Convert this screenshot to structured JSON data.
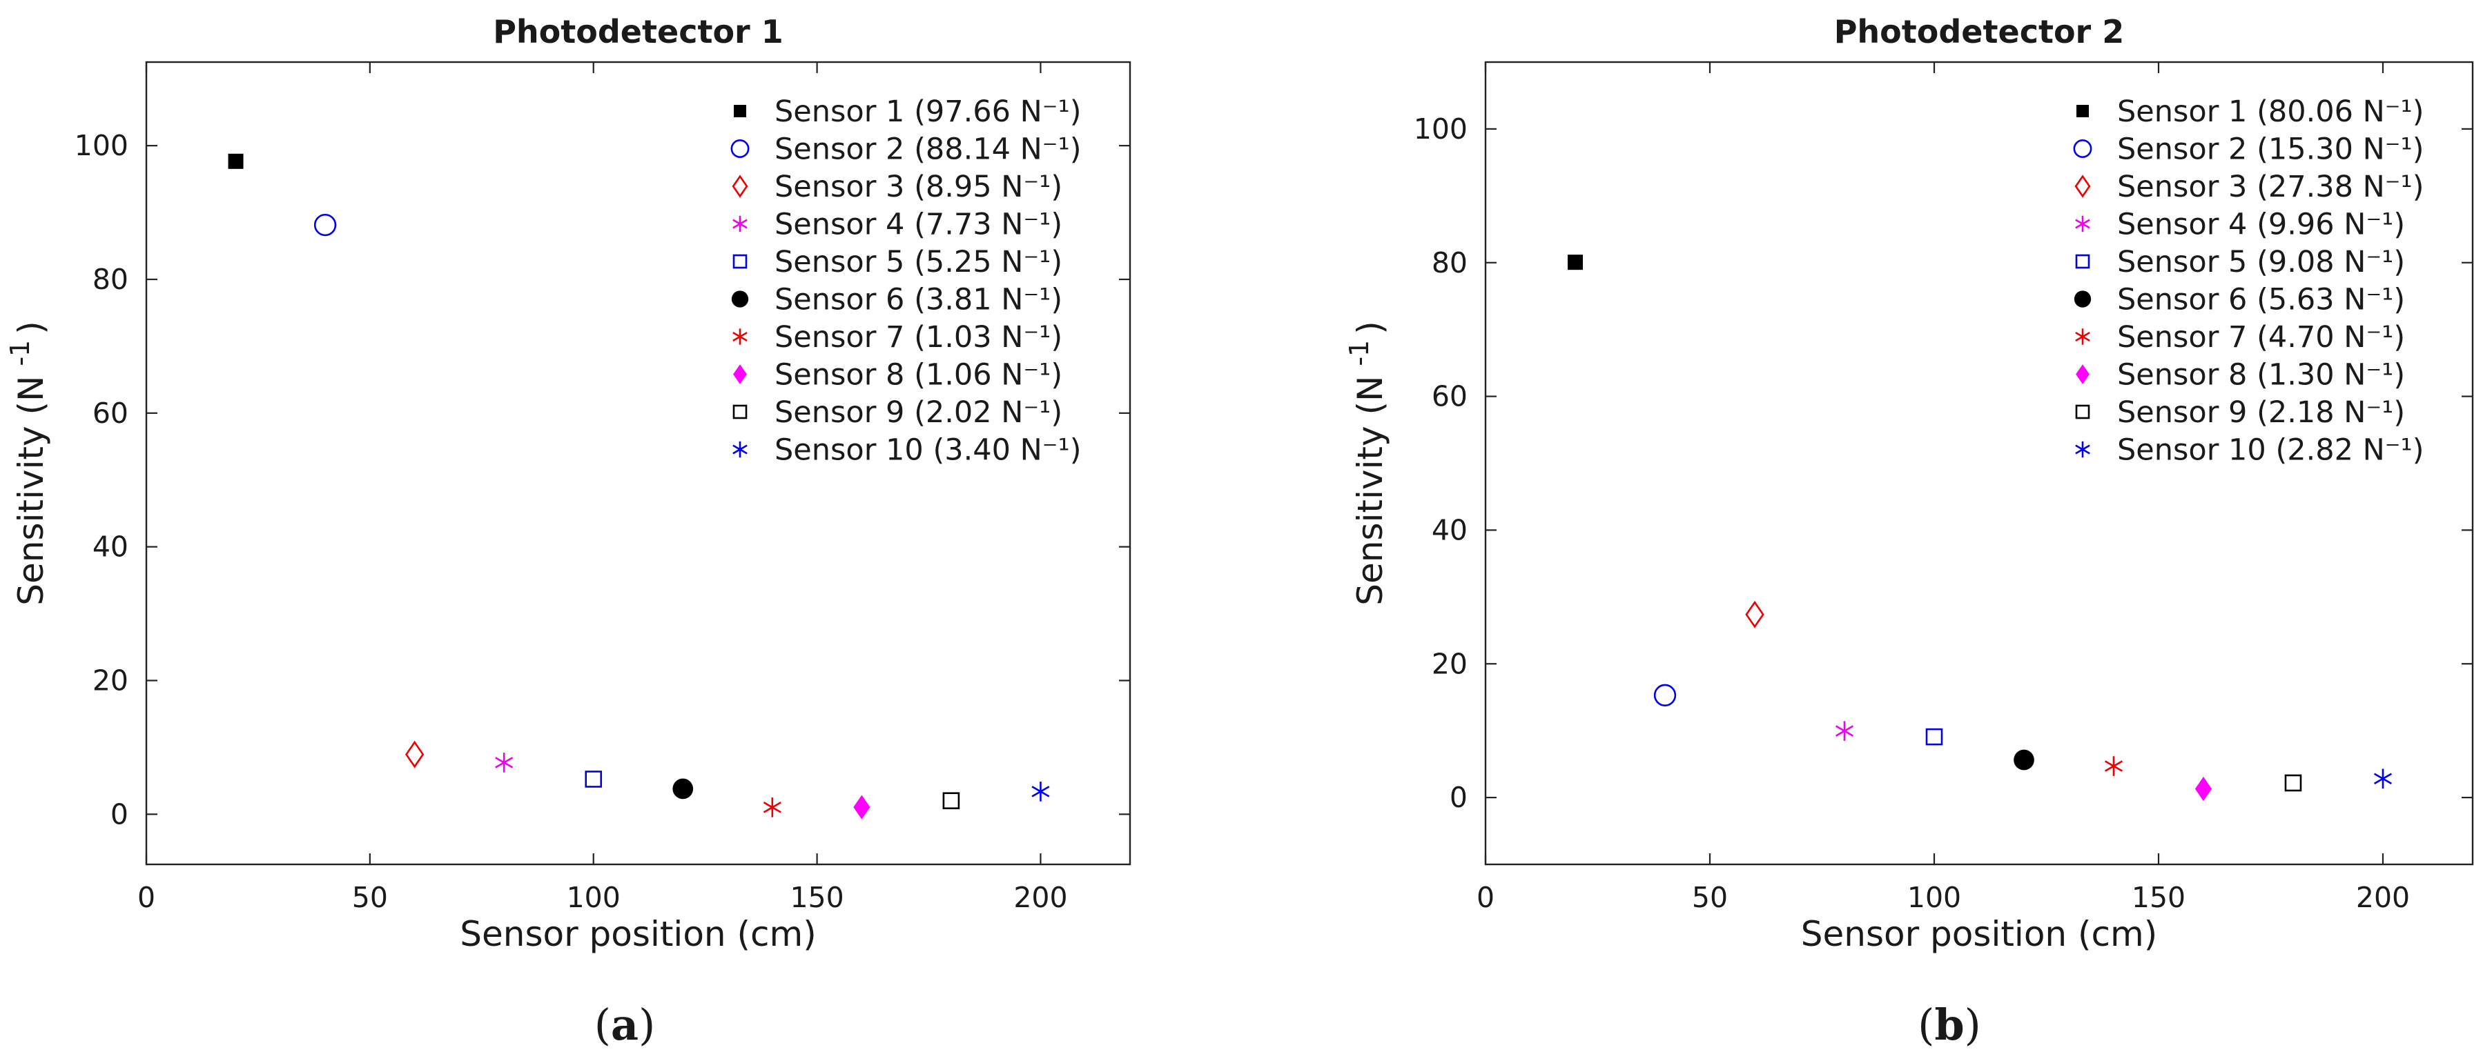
{
  "chart_data": [
    {
      "type": "scatter",
      "title": "Photodetector 1",
      "xlabel": "Sensor position (cm)",
      "ylabel": "Sensitivity (N",
      "ylabel_superscript": "-1",
      "ylabel_close": ")",
      "xlim": [
        0,
        220
      ],
      "ylim": [
        -7.5,
        112.5
      ],
      "xticks": [
        0,
        50,
        100,
        150,
        200
      ],
      "yticks": [
        0,
        20,
        40,
        60,
        80,
        100
      ],
      "legend_position": "top-right",
      "caption_letter": "a",
      "caption_open": "(",
      "caption_close": ")",
      "series": [
        {
          "name": "Sensor 1 (97.66 N⁻¹)",
          "x": 20,
          "y": 97.66,
          "marker": "square-filled",
          "color": "#000000"
        },
        {
          "name": "Sensor 2 (88.14 N⁻¹)",
          "x": 40,
          "y": 88.14,
          "marker": "circle-open",
          "color": "#0000ee"
        },
        {
          "name": "Sensor 3 (8.95 N⁻¹)",
          "x": 60,
          "y": 8.95,
          "marker": "diamond-open",
          "color": "#ee0000"
        },
        {
          "name": "Sensor 4 (7.73 N⁻¹)",
          "x": 80,
          "y": 7.73,
          "marker": "asterisk",
          "color": "#ee00ee"
        },
        {
          "name": "Sensor 5 (5.25 N⁻¹)",
          "x": 100,
          "y": 5.25,
          "marker": "square-open",
          "color": "#0000ee"
        },
        {
          "name": "Sensor 6 (3.81 N⁻¹)",
          "x": 120,
          "y": 3.81,
          "marker": "circle-filled",
          "color": "#000000"
        },
        {
          "name": "Sensor 7 (1.03 N⁻¹)",
          "x": 140,
          "y": 1.03,
          "marker": "asterisk",
          "color": "#ee0000"
        },
        {
          "name": "Sensor 8 (1.06 N⁻¹)",
          "x": 160,
          "y": 1.06,
          "marker": "diamond-filled",
          "color": "#ff00ff"
        },
        {
          "name": "Sensor 9 (2.02 N⁻¹)",
          "x": 180,
          "y": 2.02,
          "marker": "square-open",
          "color": "#000000"
        },
        {
          "name": "Sensor 10 (3.40 N⁻¹)",
          "x": 200,
          "y": 3.4,
          "marker": "asterisk",
          "color": "#0000ee"
        }
      ]
    },
    {
      "type": "scatter",
      "title": "Photodetector 2",
      "xlabel": "Sensor position (cm)",
      "ylabel": "Sensitivity (N",
      "ylabel_superscript": "-1",
      "ylabel_close": ")",
      "xlim": [
        0,
        220
      ],
      "ylim": [
        -10,
        110
      ],
      "xticks": [
        0,
        50,
        100,
        150,
        200
      ],
      "yticks": [
        0,
        20,
        40,
        60,
        80,
        100
      ],
      "legend_position": "top-right",
      "caption_letter": "b",
      "caption_open": "(",
      "caption_close": ")",
      "series": [
        {
          "name": "Sensor 1 (80.06 N⁻¹)",
          "x": 20,
          "y": 80.06,
          "marker": "square-filled",
          "color": "#000000"
        },
        {
          "name": "Sensor 2 (15.30 N⁻¹)",
          "x": 40,
          "y": 15.3,
          "marker": "circle-open",
          "color": "#0000ee"
        },
        {
          "name": "Sensor 3 (27.38 N⁻¹)",
          "x": 60,
          "y": 27.38,
          "marker": "diamond-open",
          "color": "#ee0000"
        },
        {
          "name": "Sensor 4 (9.96 N⁻¹)",
          "x": 80,
          "y": 9.96,
          "marker": "asterisk",
          "color": "#ee00ee"
        },
        {
          "name": "Sensor 5 (9.08 N⁻¹)",
          "x": 100,
          "y": 9.08,
          "marker": "square-open",
          "color": "#0000ee"
        },
        {
          "name": "Sensor 6 (5.63 N⁻¹)",
          "x": 120,
          "y": 5.63,
          "marker": "circle-filled",
          "color": "#000000"
        },
        {
          "name": "Sensor 7 (4.70 N⁻¹)",
          "x": 140,
          "y": 4.7,
          "marker": "asterisk",
          "color": "#ee0000"
        },
        {
          "name": "Sensor 8 (1.30 N⁻¹)",
          "x": 160,
          "y": 1.3,
          "marker": "diamond-filled",
          "color": "#ff00ff"
        },
        {
          "name": "Sensor 9 (2.18 N⁻¹)",
          "x": 180,
          "y": 2.18,
          "marker": "square-open",
          "color": "#000000"
        },
        {
          "name": "Sensor 10 (2.82 N⁻¹)",
          "x": 200,
          "y": 2.82,
          "marker": "asterisk",
          "color": "#0000ee"
        }
      ]
    }
  ]
}
